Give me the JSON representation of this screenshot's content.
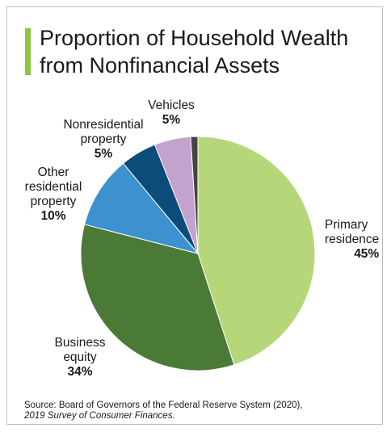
{
  "title": {
    "line1": "Proportion of Household Wealth",
    "line2": "from Nonfinancial Assets"
  },
  "accent_color": "#8cc63f",
  "chart_data": {
    "type": "pie",
    "title": "Proportion of Household Wealth from Nonfinancial Assets",
    "start_angle_deg": 0,
    "direction": "clockwise",
    "slices": [
      {
        "label_lines": [
          "Primary",
          "residence"
        ],
        "value": 45,
        "value_label": "45%",
        "color": "#b5d77a"
      },
      {
        "label_lines": [
          "Business",
          "equity"
        ],
        "value": 34,
        "value_label": "34%",
        "color": "#4a7a36"
      },
      {
        "label_lines": [
          "Other",
          "residential",
          "property"
        ],
        "value": 10,
        "value_label": "10%",
        "color": "#3b92cf"
      },
      {
        "label_lines": [
          "Nonresidential",
          "property"
        ],
        "value": 5,
        "value_label": "5%",
        "color": "#0c4c7a"
      },
      {
        "label_lines": [
          "Vehicles"
        ],
        "value": 5,
        "value_label": "5%",
        "color": "#c3a2cd"
      },
      {
        "label_lines": [],
        "value": 1,
        "value_label": "",
        "color": "#444444"
      }
    ]
  },
  "source": {
    "line1": "Source: Board of Governors of the Federal Reserve System (2020),",
    "line2": "2019 Survey of Consumer Finances."
  }
}
